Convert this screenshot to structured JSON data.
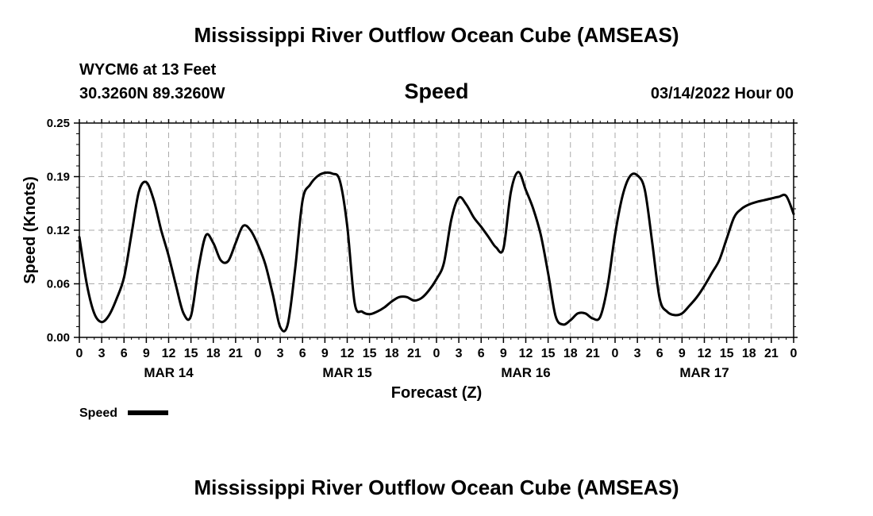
{
  "header": {
    "title": "Mississippi River Outflow Ocean Cube (AMSEAS)",
    "station": "WYCM6 at 13 Feet",
    "coords": "30.3260N  89.3260W",
    "datetime": "03/14/2022 Hour 00"
  },
  "footer": {
    "title": "Mississippi River Outflow Ocean Cube (AMSEAS)"
  },
  "chart_data": {
    "type": "line",
    "title": "Speed",
    "xlabel": "Forecast (Z)",
    "ylabel": "Speed (Knots)",
    "xlim": [
      0,
      96
    ],
    "ylim": [
      0,
      0.25
    ],
    "y_ticks": [
      "0.00",
      "0.06",
      "0.12",
      "0.19",
      "0.25"
    ],
    "x_tick_labels": [
      "0",
      "3",
      "6",
      "9",
      "12",
      "15",
      "18",
      "21",
      "0",
      "3",
      "6",
      "9",
      "12",
      "15",
      "18",
      "21",
      "0",
      "3",
      "6",
      "9",
      "12",
      "15",
      "18",
      "21",
      "0",
      "3",
      "6",
      "9",
      "12",
      "15",
      "18",
      "21",
      "0"
    ],
    "date_labels": [
      {
        "label": "MAR 14",
        "hour": 12
      },
      {
        "label": "MAR 15",
        "hour": 36
      },
      {
        "label": "MAR 16",
        "hour": 60
      },
      {
        "label": "MAR 17",
        "hour": 84
      }
    ],
    "grid": true,
    "legend": {
      "position": "bottom-left"
    },
    "series": [
      {
        "name": "Speed",
        "color": "#000000",
        "x": [
          0,
          1,
          2,
          3,
          4,
          5,
          6,
          7,
          8,
          9,
          10,
          11,
          12,
          13,
          14,
          15,
          16,
          17,
          18,
          19,
          20,
          21,
          22,
          23,
          24,
          25,
          26,
          27,
          28,
          29,
          30,
          31,
          32,
          33,
          34,
          35,
          36,
          37,
          38,
          39,
          40,
          41,
          42,
          43,
          44,
          45,
          46,
          47,
          48,
          49,
          50,
          51,
          52,
          53,
          54,
          55,
          56,
          57,
          58,
          59,
          60,
          61,
          62,
          63,
          64,
          65,
          66,
          67,
          68,
          69,
          70,
          71,
          72,
          73,
          74,
          75,
          76,
          77,
          78,
          79,
          80,
          81,
          82,
          83,
          84,
          85,
          86,
          87,
          88,
          89,
          90,
          91,
          92,
          93,
          94,
          95,
          96
        ],
        "values": [
          0.117,
          0.062,
          0.028,
          0.018,
          0.026,
          0.045,
          0.07,
          0.12,
          0.17,
          0.181,
          0.16,
          0.125,
          0.095,
          0.06,
          0.028,
          0.025,
          0.08,
          0.119,
          0.11,
          0.09,
          0.089,
          0.11,
          0.13,
          0.125,
          0.108,
          0.085,
          0.05,
          0.012,
          0.015,
          0.08,
          0.16,
          0.178,
          0.188,
          0.192,
          0.191,
          0.183,
          0.13,
          0.04,
          0.03,
          0.027,
          0.03,
          0.035,
          0.042,
          0.047,
          0.047,
          0.043,
          0.046,
          0.055,
          0.068,
          0.087,
          0.138,
          0.163,
          0.155,
          0.14,
          0.129,
          0.117,
          0.105,
          0.104,
          0.17,
          0.193,
          0.172,
          0.15,
          0.12,
          0.075,
          0.025,
          0.015,
          0.02,
          0.028,
          0.028,
          0.022,
          0.024,
          0.06,
          0.12,
          0.165,
          0.188,
          0.189,
          0.172,
          0.11,
          0.045,
          0.03,
          0.026,
          0.028,
          0.037,
          0.047,
          0.06,
          0.075,
          0.09,
          0.115,
          0.14,
          0.15,
          0.155,
          0.158,
          0.16,
          0.162,
          0.164,
          0.165,
          0.144
        ]
      }
    ]
  }
}
